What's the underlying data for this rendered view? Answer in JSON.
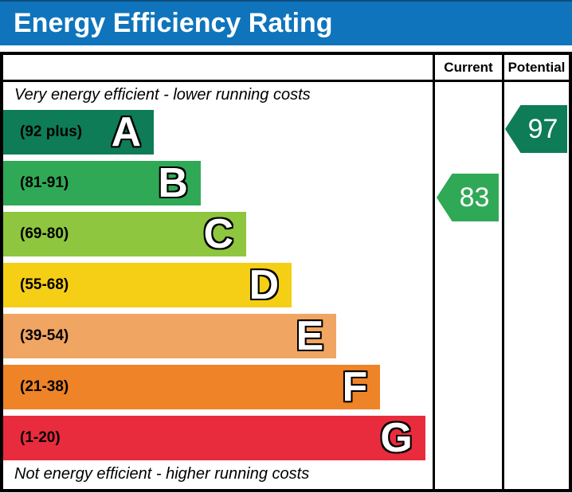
{
  "title": "Energy Efficiency Rating",
  "table_header": {
    "current": "Current",
    "potential": "Potential"
  },
  "notes": {
    "top": "Very energy efficient - lower running costs",
    "bottom": "Not energy efficient - higher running costs"
  },
  "colors": {
    "title_bar": "#0f74bc",
    "border": "#000000"
  },
  "chart_data": {
    "type": "bar",
    "orientation": "horizontal",
    "title": "Energy Efficiency Rating",
    "columns": [
      "Current",
      "Potential"
    ],
    "bands": [
      {
        "letter": "A",
        "range_label": "(92 plus)",
        "color": "#0e7c56",
        "width_pct": 35.1
      },
      {
        "letter": "B",
        "range_label": "(81-91)",
        "color": "#30a957",
        "width_pct": 46.0
      },
      {
        "letter": "C",
        "range_label": "(69-80)",
        "color": "#8ec63f",
        "width_pct": 56.6
      },
      {
        "letter": "D",
        "range_label": "(55-68)",
        "color": "#f5ce16",
        "width_pct": 67.2
      },
      {
        "letter": "E",
        "range_label": "(39-54)",
        "color": "#f1a562",
        "width_pct": 77.6
      },
      {
        "letter": "F",
        "range_label": "(21-38)",
        "color": "#ee8327",
        "width_pct": 87.8
      },
      {
        "letter": "G",
        "range_label": "(1-20)",
        "color": "#e82c3d",
        "width_pct": 98.3
      }
    ],
    "current": {
      "value": 83,
      "band": "B",
      "color": "#30a957"
    },
    "potential": {
      "value": 97,
      "band": "A",
      "color": "#0e7c56"
    }
  }
}
